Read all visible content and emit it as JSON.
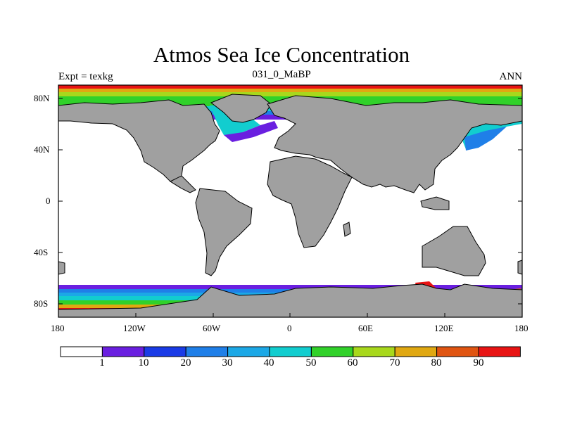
{
  "title": "Atmos Sea Ice Concentration",
  "subtitle_left": "Expt = texkg",
  "subtitle_center": "031_0_MaBP",
  "subtitle_right": "ANN",
  "y_ticks": [
    "80N",
    "40N",
    "0",
    "40S",
    "80S"
  ],
  "x_ticks": [
    "180",
    "120W",
    "60W",
    "0",
    "60E",
    "120E",
    "180"
  ],
  "colorbar": {
    "labels": [
      "1",
      "10",
      "20",
      "30",
      "40",
      "50",
      "60",
      "70",
      "80",
      "90"
    ],
    "colors": [
      "#ffffff",
      "#6a1fe0",
      "#1a3be6",
      "#1f7fe8",
      "#1ca8e6",
      "#12cdcf",
      "#31d12a",
      "#a8d81c",
      "#e0a812",
      "#e05512",
      "#e81414"
    ]
  },
  "land_color": "#a0a0a0"
}
